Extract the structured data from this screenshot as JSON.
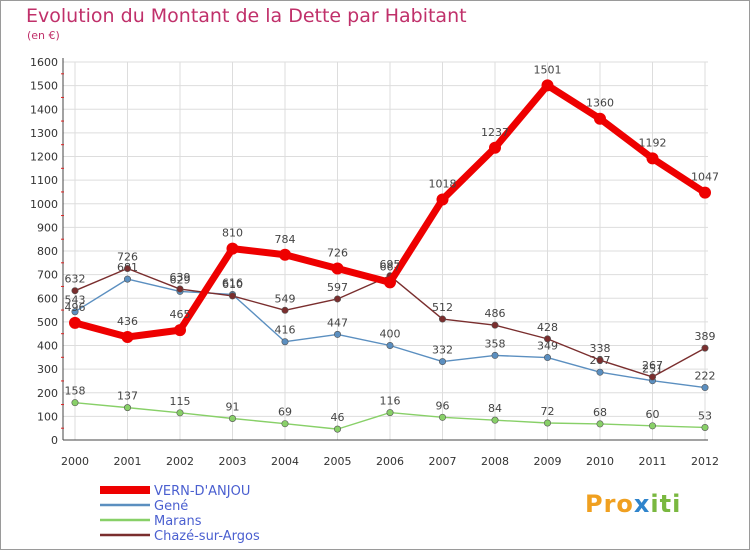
{
  "title": "Evolution du Montant de la Dette par Habitant",
  "unit": "(en €)",
  "logo": "Proxiti",
  "chart_data": {
    "type": "line",
    "title": "Evolution du Montant de la Dette par Habitant",
    "ylabel": "(en €)",
    "xlabel": "",
    "ylim": [
      0,
      1600
    ],
    "yticks": [
      0,
      100,
      200,
      300,
      400,
      500,
      600,
      700,
      800,
      900,
      1000,
      1100,
      1200,
      1300,
      1400,
      1500,
      1600
    ],
    "x": [
      "2000",
      "2001",
      "2002",
      "2003",
      "2004",
      "2005",
      "2006",
      "2007",
      "2008",
      "2009",
      "2010",
      "2011",
      "2012"
    ],
    "grid": true,
    "legend_position": "bottom-left",
    "series": [
      {
        "name": "VERN-D'ANJOU",
        "color": "#ee0000",
        "values": [
          496,
          436,
          465,
          810,
          784,
          726,
          667,
          1018,
          1237,
          1501,
          1360,
          1192,
          1047
        ]
      },
      {
        "name": "Gené",
        "color": "#5b8fc0",
        "values": [
          543,
          681,
          629,
          616,
          416,
          447,
          400,
          332,
          358,
          349,
          287,
          251,
          222
        ]
      },
      {
        "name": "Marans",
        "color": "#88d068",
        "values": [
          158,
          137,
          115,
          91,
          69,
          46,
          116,
          96,
          84,
          72,
          68,
          60,
          53
        ]
      },
      {
        "name": "Chazé-sur-Argos",
        "color": "#7a2e2e",
        "values": [
          632,
          726,
          639,
          610,
          549,
          597,
          695,
          512,
          486,
          428,
          338,
          267,
          389
        ]
      }
    ]
  }
}
